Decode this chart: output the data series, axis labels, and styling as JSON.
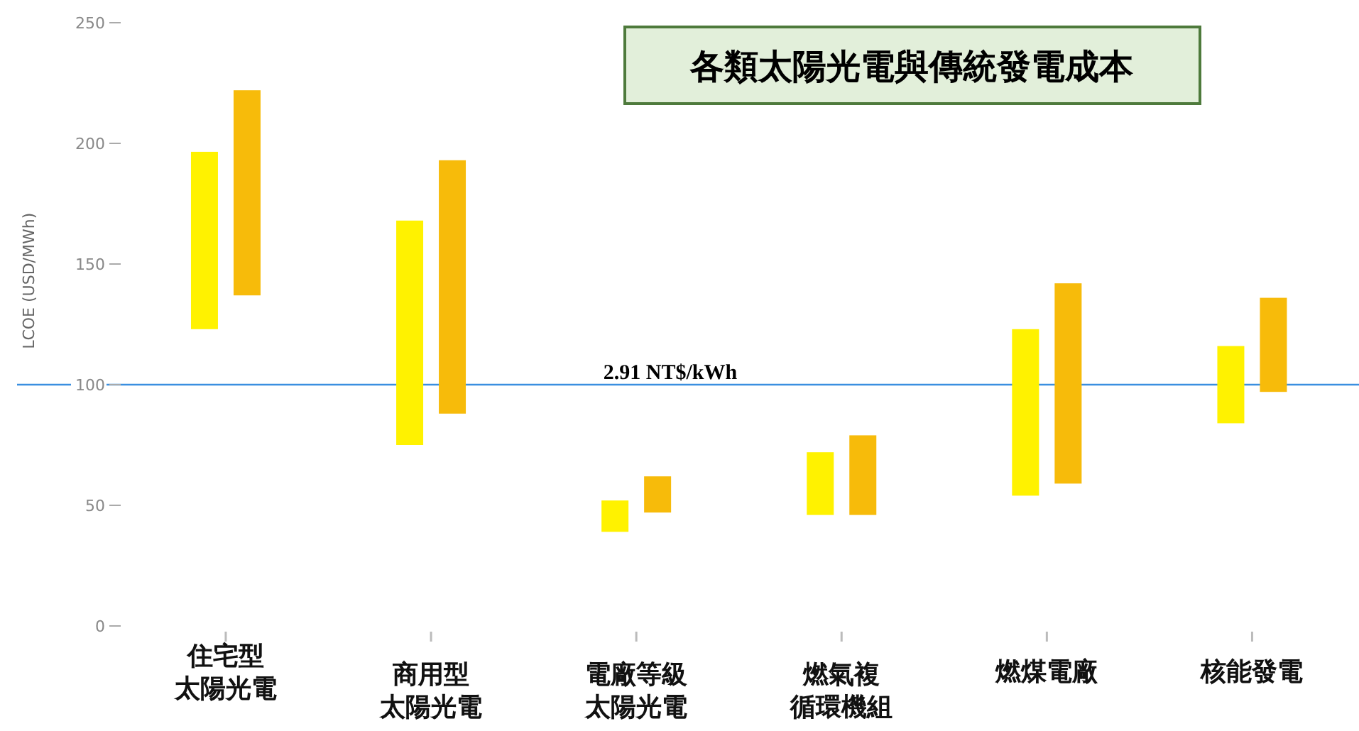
{
  "chart_data": {
    "type": "bar",
    "title": "各類太陽光電與傳統發電成本",
    "ylabel": "LCOE (USD/MWh)",
    "categories": [
      "住宅型太陽光電",
      "商用型太陽光電",
      "電廠等級太陽光電",
      "燃氣複循環機組",
      "燃煤電廠",
      "核能發電"
    ],
    "series": [
      {
        "color": "#fff200",
        "base": [
          123,
          75,
          39,
          46,
          54,
          84
        ],
        "values": [
          73.5,
          93,
          13,
          26,
          69,
          32
        ]
      },
      {
        "color": "#f7bb0a",
        "base": [
          137,
          88,
          47,
          46,
          59,
          97
        ],
        "values": [
          85,
          105,
          15,
          33,
          83,
          39
        ]
      }
    ],
    "ylim": [
      0,
      250
    ],
    "yticks": [
      0,
      50,
      100,
      150,
      200,
      250
    ],
    "grid": false,
    "ref_lines": [
      {
        "axis": "y",
        "value": 100,
        "label": "2.91 NT$/kWh",
        "color": "#3a8fe0"
      }
    ]
  }
}
